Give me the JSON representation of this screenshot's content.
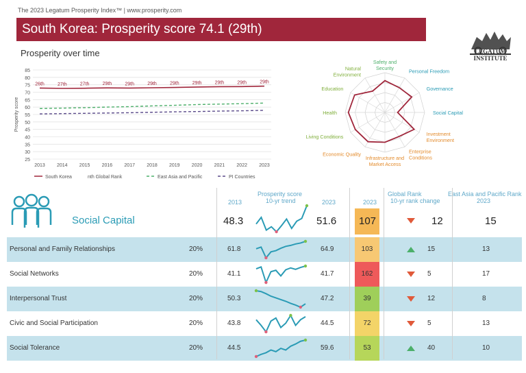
{
  "header": {
    "source": "The 2023 Legatum Prosperity Index™ | www.prosperity.com",
    "title": "South Korea: Prosperity score 74.1 (29th)",
    "logo_line1": "LEGATUM",
    "logo_line2": "INSTITUTE"
  },
  "colors": {
    "brand": "#a0263b",
    "south_korea": "#a0263b",
    "east_asia": "#4caf6a",
    "pi_countries": "#5a4a8a",
    "row_blue": "#c5e2ec",
    "teal": "#2a9bb5"
  },
  "chart_data": [
    {
      "type": "line",
      "title": "Prosperity over time",
      "ylabel": "Prosperity score",
      "ylim": [
        25,
        85
      ],
      "yticks": [
        25,
        30,
        35,
        40,
        45,
        50,
        55,
        60,
        65,
        70,
        75,
        80,
        85
      ],
      "x": [
        2013,
        2014,
        2015,
        2016,
        2017,
        2018,
        2019,
        2020,
        2021,
        2022,
        2023
      ],
      "series": [
        {
          "name": "South Korea",
          "values": [
            72.8,
            72.6,
            72.7,
            72.9,
            72.8,
            73.0,
            73.2,
            73.5,
            73.7,
            73.8,
            74.1
          ]
        },
        {
          "name": "East Asia and Pacific",
          "values": [
            59.0,
            59.3,
            59.6,
            60.0,
            60.3,
            60.8,
            61.2,
            61.7,
            62.0,
            62.3,
            62.7
          ]
        },
        {
          "name": "PI Countries",
          "values": [
            55.4,
            55.6,
            55.8,
            56.0,
            56.2,
            56.5,
            56.8,
            57.0,
            57.3,
            57.5,
            57.8
          ]
        }
      ],
      "rank_labels": [
        "26th",
        "27th",
        "27th",
        "29th",
        "29th",
        "29th",
        "29th",
        "29th",
        "29th",
        "29th",
        "29th"
      ],
      "legend": [
        "South Korea",
        "nth Global Rank",
        "East Asia and Pacific",
        "PI Countries"
      ],
      "grid": true,
      "legend_placement": "bottom"
    },
    {
      "type": "radar",
      "categories": [
        "Safety and Security",
        "Personal Freedom",
        "Governance",
        "Social Capital",
        "Investment Environment",
        "Enterprise Conditions",
        "Infrastructure and Market Access",
        "Economic Quality",
        "Living Conditions",
        "Health",
        "Education",
        "Natural Environment"
      ],
      "values": [
        0.8,
        0.72,
        0.78,
        0.32,
        0.85,
        0.7,
        0.75,
        0.85,
        0.86,
        0.92,
        0.88,
        0.62
      ]
    }
  ],
  "table": {
    "header": {
      "prosperity_score": "Prosperity score",
      "trend_label": "10-yr trend",
      "year_start": "2013",
      "year_end": "2023",
      "global_rank": "Global Rank",
      "rank_change": "10-yr rank change",
      "regional_rank": "East Asia and Pacific Rank",
      "regional_year": "2023"
    },
    "main": {
      "pillar": "Social Capital",
      "score_2013": "48.3",
      "score_2023": "51.6",
      "rank": "107",
      "change": "12",
      "direction": "down",
      "regional": "15",
      "trend": [
        48.3,
        49.5,
        47.2,
        47.8,
        46.9,
        48.0,
        49.2,
        47.5,
        48.8,
        49.3,
        51.6
      ]
    },
    "rows": [
      {
        "label": "Personal and Family Relationships",
        "weight": "20%",
        "score_2013": "61.8",
        "score_2023": "64.9",
        "rank": "103",
        "rank_color": "#f7c873",
        "change": "15",
        "direction": "up",
        "regional": "13",
        "trend": [
          61.8,
          62.5,
          58.0,
          60.5,
          61.0,
          62.0,
          62.8,
          63.2,
          63.8,
          64.2,
          64.9
        ]
      },
      {
        "label": "Social Networks",
        "weight": "20%",
        "score_2013": "41.1",
        "score_2023": "41.7",
        "rank": "162",
        "rank_color": "#ee5a5a",
        "change": "5",
        "direction": "down",
        "regional": "17",
        "trend": [
          41.1,
          41.5,
          38.2,
          40.5,
          40.8,
          39.6,
          40.9,
          41.3,
          41.0,
          41.4,
          41.7
        ]
      },
      {
        "label": "Interpersonal Trust",
        "weight": "20%",
        "score_2013": "50.3",
        "score_2023": "47.2",
        "rank": "39",
        "rank_color": "#9fcf5a",
        "change": "12",
        "direction": "down",
        "regional": "8",
        "trend": [
          50.3,
          50.1,
          49.6,
          49.0,
          48.6,
          48.2,
          47.8,
          47.3,
          46.9,
          46.4,
          47.2
        ]
      },
      {
        "label": "Civic and Social Participation",
        "weight": "20%",
        "score_2013": "43.8",
        "score_2023": "44.5",
        "rank": "72",
        "rank_color": "#f3d468",
        "change": "5",
        "direction": "down",
        "regional": "13",
        "trend": [
          43.8,
          42.5,
          41.0,
          43.5,
          44.2,
          42.0,
          43.0,
          44.8,
          42.5,
          43.8,
          44.5
        ]
      },
      {
        "label": "Social Tolerance",
        "weight": "20%",
        "score_2013": "44.5",
        "score_2023": "59.6",
        "rank": "53",
        "rank_color": "#b6d65a",
        "change": "40",
        "direction": "up",
        "regional": "10",
        "trend": [
          44.5,
          46.5,
          48.0,
          50.5,
          49.0,
          52.0,
          50.5,
          54.0,
          56.0,
          58.5,
          59.6
        ]
      }
    ]
  }
}
